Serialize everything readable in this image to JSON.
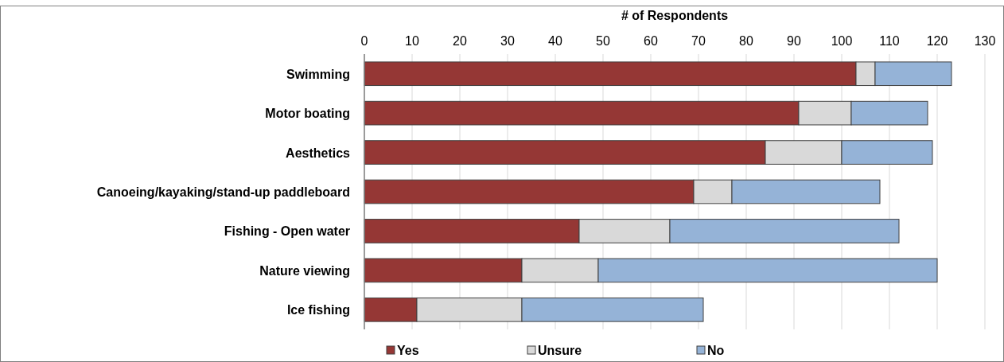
{
  "chart_data": {
    "type": "bar",
    "orientation": "horizontal",
    "stacked": true,
    "xlabel": "# of Respondents",
    "categories": [
      "Swimming",
      "Motor boating",
      "Aesthetics",
      "Canoeing/kayaking/stand-up paddleboard",
      "Fishing - Open water",
      "Nature viewing",
      "Ice fishing"
    ],
    "series": [
      {
        "name": "Yes",
        "color": "#953735",
        "values": [
          103,
          91,
          84,
          69,
          45,
          33,
          11
        ]
      },
      {
        "name": "Unsure",
        "color": "#d9d9d9",
        "values": [
          4,
          11,
          16,
          8,
          19,
          16,
          22
        ]
      },
      {
        "name": "No",
        "color": "#95b3d7",
        "values": [
          16,
          16,
          19,
          31,
          48,
          71,
          38
        ]
      }
    ],
    "xlim": [
      0,
      130
    ],
    "xticks": [
      0,
      10,
      20,
      30,
      40,
      50,
      60,
      70,
      80,
      90,
      100,
      110,
      120,
      130
    ],
    "grid": "x",
    "legend": "bottom"
  }
}
